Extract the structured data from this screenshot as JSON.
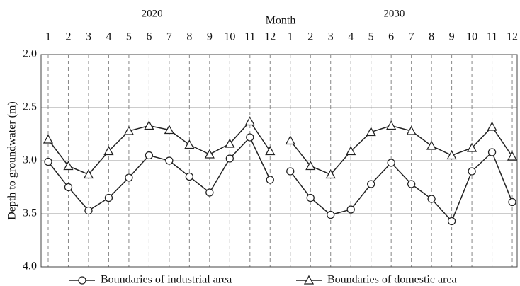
{
  "chart_data": {
    "type": "line",
    "xlabel": "Month",
    "ylabel": "Depth to groundwater (m)",
    "categories": [
      "1",
      "2",
      "3",
      "4",
      "5",
      "6",
      "7",
      "8",
      "9",
      "10",
      "11",
      "12"
    ],
    "ylim": [
      2.0,
      4.0
    ],
    "y_inverted": true,
    "yticks": [
      {
        "value": 2.0,
        "label": "2.0"
      },
      2.5,
      {
        "value": 3.0,
        "label": "3.0"
      },
      3.5,
      {
        "value": 4.0,
        "label": "4.0"
      }
    ],
    "grid": true,
    "legend": "bottom",
    "panels": [
      {
        "title": "2020",
        "series": [
          {
            "name": "Boundaries of industrial area",
            "color": "#222222",
            "marker": "circle",
            "values": [
              3.01,
              3.25,
              3.47,
              3.35,
              3.16,
              2.95,
              3.0,
              3.15,
              3.3,
              2.98,
              2.78,
              3.18
            ]
          },
          {
            "name": "Boundaries of domestic area",
            "color": "#222222",
            "marker": "triangle",
            "values": [
              2.8,
              3.05,
              3.13,
              2.91,
              2.72,
              2.67,
              2.71,
              2.85,
              2.94,
              2.84,
              2.63,
              2.91
            ]
          }
        ]
      },
      {
        "title": "2030",
        "series": [
          {
            "name": "Boundaries of industrial area",
            "color": "#222222",
            "marker": "circle",
            "values": [
              3.1,
              3.35,
              3.51,
              3.46,
              3.22,
              3.02,
              3.22,
              3.36,
              3.57,
              3.1,
              2.92,
              3.39
            ]
          },
          {
            "name": "Boundaries of domestic area",
            "color": "#222222",
            "marker": "triangle",
            "values": [
              2.81,
              3.05,
              3.13,
              2.91,
              2.73,
              2.67,
              2.72,
              2.86,
              2.95,
              2.88,
              2.68,
              2.96
            ]
          }
        ]
      }
    ]
  }
}
